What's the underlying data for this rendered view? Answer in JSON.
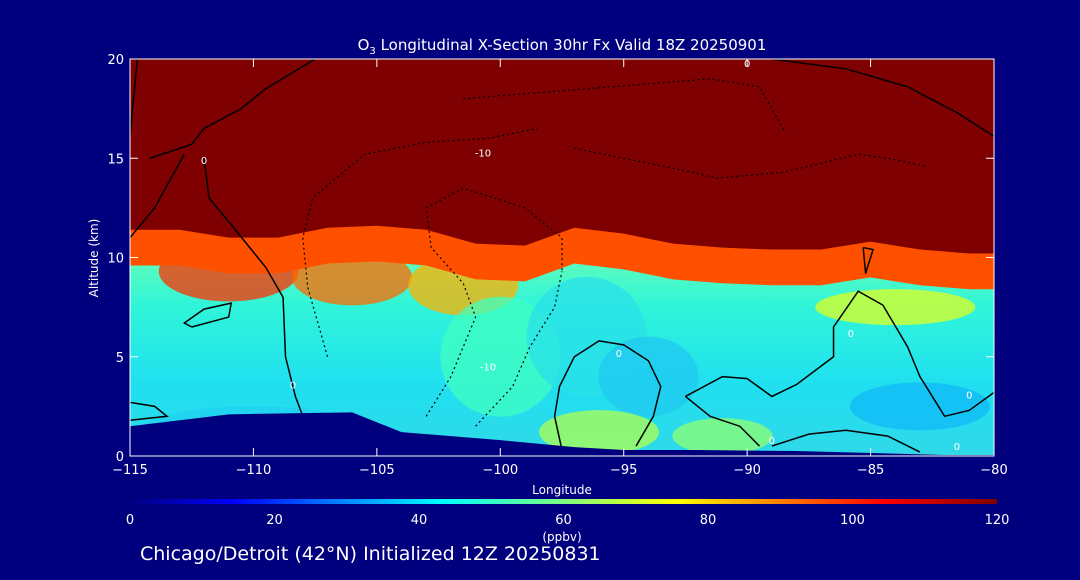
{
  "title_prefix": "O",
  "title_sub": "3",
  "title_rest": " Longitudinal X-Section 30hr  Fx Valid 18Z 20250901",
  "footer": "Chicago/Detroit (42°N) Initialized 12Z 20250831",
  "chart_data": {
    "type": "heatmap",
    "xlabel": "Longitude",
    "ylabel": "Altitude (km)",
    "xlim": [
      -115,
      -80
    ],
    "ylim": [
      0,
      20
    ],
    "x_ticks": [
      -115,
      -110,
      -105,
      -100,
      -95,
      -90,
      -85,
      -80
    ],
    "x_tick_labels": [
      "−115",
      "−110",
      "−105",
      "−100",
      "−95",
      "−90",
      "−85",
      "−80"
    ],
    "y_ticks": [
      0,
      5,
      10,
      15,
      20
    ],
    "y_tick_labels": [
      "0",
      "5",
      "10",
      "15",
      "20"
    ],
    "colorbar": {
      "label": "(ppbv)",
      "range": [
        0,
        120
      ],
      "ticks": [
        0,
        20,
        40,
        60,
        80,
        100,
        120
      ],
      "tick_labels": [
        "0",
        "20",
        "40",
        "60",
        "80",
        "100",
        "120"
      ]
    },
    "tropopause_altitude_km": {
      "lon": [
        -115,
        -113,
        -111,
        -109,
        -107,
        -105,
        -103,
        -101,
        -99,
        -97,
        -95,
        -93,
        -91,
        -89,
        -87,
        -85,
        -83,
        -81,
        -80
      ],
      "alt": [
        11.0,
        11.0,
        10.6,
        10.6,
        11.1,
        11.2,
        11.0,
        10.3,
        10.2,
        11.1,
        10.8,
        10.3,
        10.1,
        10.0,
        10.0,
        10.4,
        10.0,
        9.8,
        9.8
      ]
    },
    "terrain_altitude_km": {
      "lon": [
        -115,
        -111,
        -106,
        -104,
        -100,
        -97,
        -95,
        -92,
        -88,
        -82,
        -80
      ],
      "alt": [
        1.5,
        2.1,
        2.2,
        1.2,
        0.8,
        0.45,
        0.3,
        0.3,
        0.25,
        0.05,
        0.05
      ]
    },
    "contour_labels": [
      "0",
      "-10"
    ]
  }
}
